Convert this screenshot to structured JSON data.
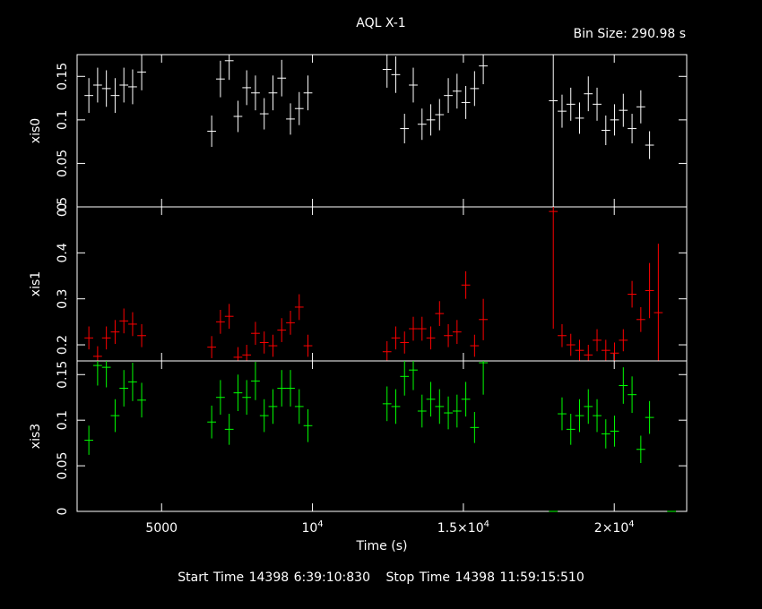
{
  "title": "AQL X-1",
  "bin_size_label": "Bin Size: 290.98 s",
  "footer": {
    "start_label": "Start Time 14398  6:39:10:830",
    "stop_label": "Stop Time 14398 11:59:15:510"
  },
  "colors": {
    "background": "#000000",
    "axes": "#ffffff",
    "xis0": "#ffffff",
    "xis1": "#ff0000",
    "xis3": "#00ff00"
  },
  "chart_data": {
    "type": "scatter",
    "xlabel": "Time (s)",
    "xlim": [
      2200,
      22400
    ],
    "x_ticks": [
      {
        "v": 5000,
        "label": "5000"
      },
      {
        "v": 10000,
        "label": "10",
        "exp": "4"
      },
      {
        "v": 15000,
        "label": "1.5×10",
        "exp": "4"
      },
      {
        "v": 20000,
        "label": "2×10",
        "exp": "4"
      }
    ],
    "x_error": 145,
    "panels": [
      {
        "name": "xis0",
        "ylabel": "xis0",
        "ylim": [
          0,
          0.175
        ],
        "color": "#ffffff",
        "yticks": [
          {
            "v": 0,
            "label": "0"
          },
          {
            "v": 0.05,
            "label": "0.05"
          },
          {
            "v": 0.1,
            "label": "0.1"
          },
          {
            "v": 0.15,
            "label": "0.15"
          }
        ],
        "points": [
          [
            2590,
            0.128,
            0.02
          ],
          [
            2880,
            0.14,
            0.02
          ],
          [
            3170,
            0.136,
            0.021
          ],
          [
            3460,
            0.128,
            0.02
          ],
          [
            3750,
            0.14,
            0.02
          ],
          [
            4040,
            0.138,
            0.02
          ],
          [
            4340,
            0.155,
            0.021
          ],
          [
            6660,
            0.087,
            0.018
          ],
          [
            6950,
            0.147,
            0.021
          ],
          [
            7240,
            0.168,
            0.022
          ],
          [
            7530,
            0.104,
            0.018
          ],
          [
            7820,
            0.137,
            0.02
          ],
          [
            8110,
            0.131,
            0.02
          ],
          [
            8400,
            0.107,
            0.018
          ],
          [
            8690,
            0.131,
            0.02
          ],
          [
            8980,
            0.148,
            0.021
          ],
          [
            9270,
            0.101,
            0.018
          ],
          [
            9560,
            0.113,
            0.019
          ],
          [
            9850,
            0.131,
            0.02
          ],
          [
            12470,
            0.158,
            0.021
          ],
          [
            12760,
            0.152,
            0.021
          ],
          [
            13050,
            0.09,
            0.017
          ],
          [
            13340,
            0.14,
            0.02
          ],
          [
            13630,
            0.095,
            0.018
          ],
          [
            13920,
            0.1,
            0.018
          ],
          [
            14210,
            0.106,
            0.018
          ],
          [
            14500,
            0.128,
            0.02
          ],
          [
            14790,
            0.133,
            0.02
          ],
          [
            15080,
            0.12,
            0.019
          ],
          [
            15370,
            0.136,
            0.02
          ],
          [
            15660,
            0.162,
            0.021
          ],
          [
            17980,
            0.122,
            0.125
          ],
          [
            18270,
            0.11,
            0.019
          ],
          [
            18560,
            0.118,
            0.019
          ],
          [
            18850,
            0.102,
            0.018
          ],
          [
            19140,
            0.13,
            0.02
          ],
          [
            19430,
            0.118,
            0.019
          ],
          [
            19720,
            0.088,
            0.017
          ],
          [
            20010,
            0.1,
            0.018
          ],
          [
            20300,
            0.111,
            0.019
          ],
          [
            20590,
            0.09,
            0.017
          ],
          [
            20880,
            0.115,
            0.019
          ],
          [
            21170,
            0.071,
            0.016
          ],
          [
            21900,
            0.0,
            0.0
          ]
        ]
      },
      {
        "name": "xis1",
        "ylabel": "xis1",
        "ylim": [
          0.165,
          0.5
        ],
        "color": "#ff0000",
        "yticks": [
          {
            "v": 0.2,
            "label": "0.2"
          },
          {
            "v": 0.3,
            "label": "0.3"
          },
          {
            "v": 0.4,
            "label": "0.4"
          },
          {
            "v": 0.5,
            "label": "0.5"
          }
        ],
        "points": [
          [
            2590,
            0.215,
            0.025
          ],
          [
            2880,
            0.175,
            0.022
          ],
          [
            3170,
            0.215,
            0.025
          ],
          [
            3460,
            0.228,
            0.026
          ],
          [
            3750,
            0.252,
            0.027
          ],
          [
            4040,
            0.245,
            0.026
          ],
          [
            4340,
            0.22,
            0.025
          ],
          [
            6660,
            0.195,
            0.024
          ],
          [
            6950,
            0.25,
            0.026
          ],
          [
            7240,
            0.262,
            0.027
          ],
          [
            7530,
            0.173,
            0.022
          ],
          [
            7820,
            0.178,
            0.022
          ],
          [
            8110,
            0.225,
            0.025
          ],
          [
            8400,
            0.205,
            0.024
          ],
          [
            8690,
            0.198,
            0.024
          ],
          [
            8980,
            0.232,
            0.026
          ],
          [
            9270,
            0.248,
            0.026
          ],
          [
            9560,
            0.282,
            0.028
          ],
          [
            9850,
            0.198,
            0.024
          ],
          [
            12470,
            0.185,
            0.023
          ],
          [
            12760,
            0.215,
            0.025
          ],
          [
            13050,
            0.205,
            0.024
          ],
          [
            13340,
            0.235,
            0.026
          ],
          [
            13630,
            0.235,
            0.026
          ],
          [
            13920,
            0.215,
            0.025
          ],
          [
            14210,
            0.268,
            0.027
          ],
          [
            14500,
            0.22,
            0.025
          ],
          [
            14790,
            0.228,
            0.026
          ],
          [
            15080,
            0.33,
            0.03
          ],
          [
            15370,
            0.198,
            0.024
          ],
          [
            15660,
            0.255,
            0.045
          ],
          [
            17980,
            0.49,
            0.255
          ],
          [
            18270,
            0.22,
            0.025
          ],
          [
            18560,
            0.2,
            0.024
          ],
          [
            18850,
            0.188,
            0.023
          ],
          [
            19140,
            0.178,
            0.022
          ],
          [
            19430,
            0.21,
            0.024
          ],
          [
            19720,
            0.188,
            0.023
          ],
          [
            20010,
            0.182,
            0.023
          ],
          [
            20300,
            0.21,
            0.024
          ],
          [
            20590,
            0.31,
            0.029
          ],
          [
            20880,
            0.255,
            0.027
          ],
          [
            21170,
            0.318,
            0.06
          ],
          [
            21460,
            0.27,
            0.15
          ]
        ]
      },
      {
        "name": "xis3",
        "ylabel": "xis3",
        "ylim": [
          0,
          0.165
        ],
        "color": "#00ff00",
        "yticks": [
          {
            "v": 0,
            "label": "0"
          },
          {
            "v": 0.05,
            "label": "0.05"
          },
          {
            "v": 0.1,
            "label": "0.1"
          },
          {
            "v": 0.15,
            "label": "0.15"
          }
        ],
        "points": [
          [
            2590,
            0.078,
            0.016
          ],
          [
            2880,
            0.16,
            0.022
          ],
          [
            3170,
            0.158,
            0.022
          ],
          [
            3460,
            0.105,
            0.018
          ],
          [
            3750,
            0.135,
            0.02
          ],
          [
            4040,
            0.142,
            0.021
          ],
          [
            4340,
            0.122,
            0.019
          ],
          [
            6660,
            0.098,
            0.018
          ],
          [
            6950,
            0.125,
            0.019
          ],
          [
            7240,
            0.09,
            0.017
          ],
          [
            7530,
            0.13,
            0.02
          ],
          [
            7820,
            0.125,
            0.019
          ],
          [
            8110,
            0.143,
            0.021
          ],
          [
            8400,
            0.105,
            0.018
          ],
          [
            8690,
            0.115,
            0.019
          ],
          [
            8980,
            0.135,
            0.02
          ],
          [
            9270,
            0.135,
            0.02
          ],
          [
            9560,
            0.115,
            0.019
          ],
          [
            9850,
            0.094,
            0.018
          ],
          [
            12470,
            0.118,
            0.019
          ],
          [
            12760,
            0.115,
            0.019
          ],
          [
            13050,
            0.148,
            0.021
          ],
          [
            13340,
            0.155,
            0.022
          ],
          [
            13630,
            0.11,
            0.018
          ],
          [
            13920,
            0.123,
            0.019
          ],
          [
            14210,
            0.115,
            0.019
          ],
          [
            14500,
            0.108,
            0.018
          ],
          [
            14790,
            0.11,
            0.018
          ],
          [
            15080,
            0.123,
            0.019
          ],
          [
            15370,
            0.092,
            0.017
          ],
          [
            15660,
            0.163,
            0.035
          ],
          [
            17980,
            0.0,
            0.0
          ],
          [
            18270,
            0.107,
            0.018
          ],
          [
            18560,
            0.09,
            0.017
          ],
          [
            18850,
            0.105,
            0.018
          ],
          [
            19140,
            0.115,
            0.019
          ],
          [
            19430,
            0.105,
            0.018
          ],
          [
            19720,
            0.085,
            0.016
          ],
          [
            20010,
            0.088,
            0.017
          ],
          [
            20300,
            0.138,
            0.02
          ],
          [
            20590,
            0.128,
            0.02
          ],
          [
            20880,
            0.068,
            0.015
          ],
          [
            21170,
            0.103,
            0.018
          ],
          [
            21900,
            0.0,
            0.0
          ]
        ]
      }
    ]
  }
}
